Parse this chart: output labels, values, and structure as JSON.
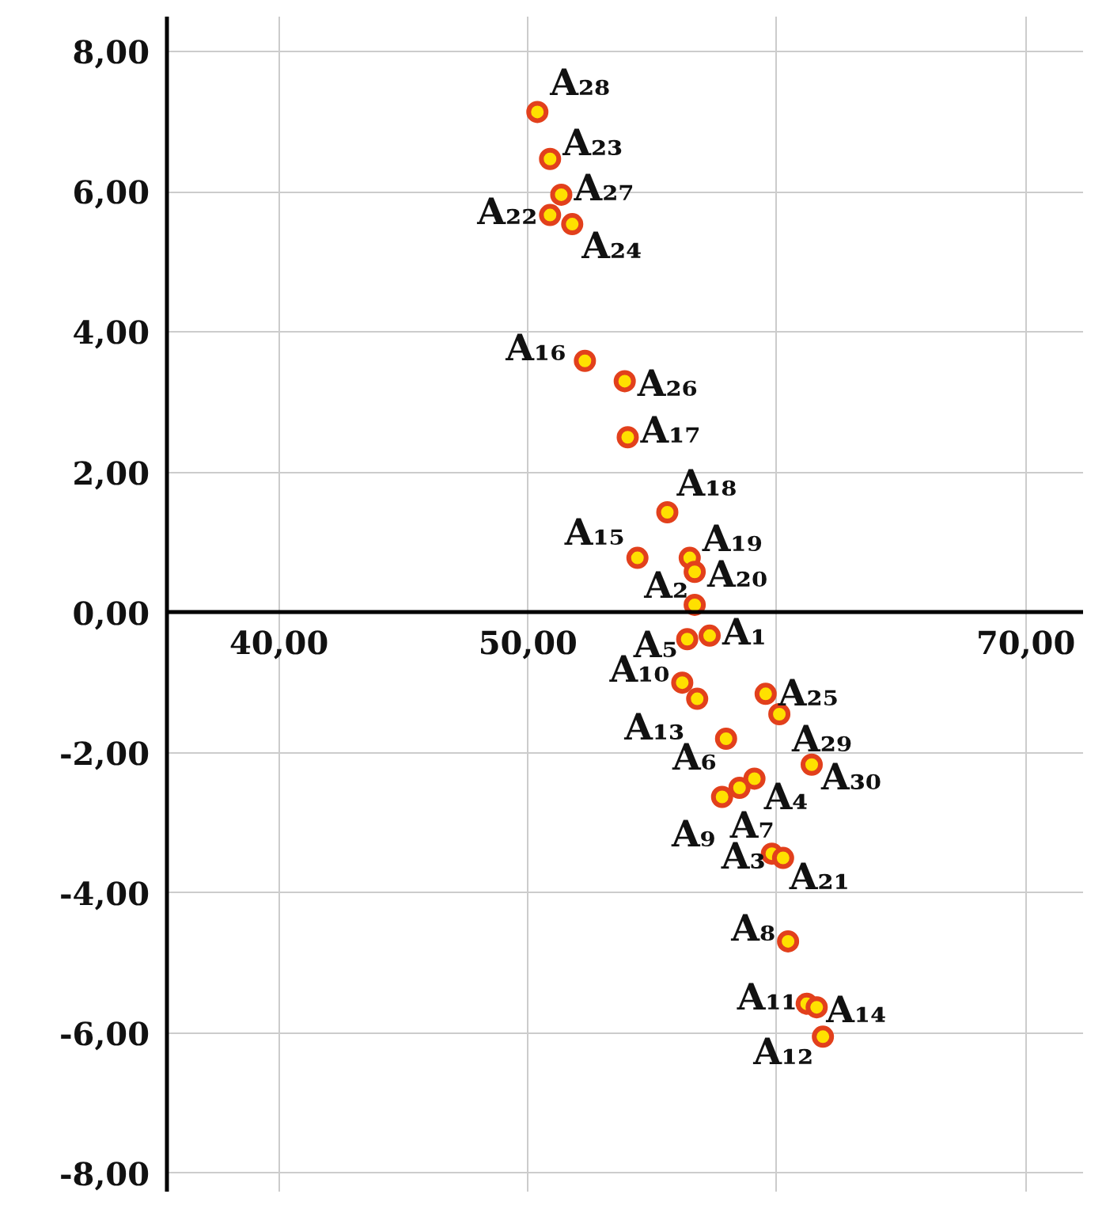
{
  "chart_data": {
    "type": "scatter",
    "x": [
      57.3,
      56.7,
      59.8,
      59.1,
      56.4,
      57.96,
      58.5,
      60.45,
      57.8,
      56.2,
      61.2,
      61.85,
      56.8,
      61.6,
      54.4,
      52.29,
      54.01,
      55.6,
      56.5,
      56.7,
      60.25,
      50.89,
      50.89,
      51.78,
      59.55,
      53.89,
      51.34,
      50.38,
      60.1,
      61.4
    ],
    "series": [
      {
        "color": "#e2401c",
        "values": [
          -0.33,
          0.11,
          -3.44,
          -2.37,
          -0.38,
          -1.8,
          -2.5,
          -4.69,
          -2.63,
          -1.0,
          -5.58,
          -6.05,
          -1.23,
          -5.63,
          0.78,
          3.59,
          2.5,
          1.43,
          0.78,
          0.58,
          -3.5,
          5.67,
          6.47,
          5.54,
          -1.16,
          3.3,
          5.96,
          7.14,
          -1.45,
          -2.17
        ]
      }
    ],
    "annotations": [
      {
        "text": "A₁",
        "x": 57.3,
        "y": -0.33
      },
      {
        "text": "A₂",
        "x": 56.7,
        "y": 0.11
      },
      {
        "text": "A₃",
        "x": 59.8,
        "y": -3.44
      },
      {
        "text": "A₄",
        "x": 59.1,
        "y": -2.37
      },
      {
        "text": "A₅",
        "x": 56.4,
        "y": -0.38
      },
      {
        "text": "A₆",
        "x": 57.96,
        "y": -1.8
      },
      {
        "text": "A₇",
        "x": 58.5,
        "y": -2.5
      },
      {
        "text": "A₈",
        "x": 60.45,
        "y": -4.69
      },
      {
        "text": "A₉",
        "x": 57.8,
        "y": -2.63
      },
      {
        "text": "A₁₀",
        "x": 56.2,
        "y": -1.0
      },
      {
        "text": "A₁₁",
        "x": 61.2,
        "y": -5.58
      },
      {
        "text": "A₁₂",
        "x": 61.85,
        "y": -6.05
      },
      {
        "text": "A₁₃",
        "x": 56.8,
        "y": -1.23
      },
      {
        "text": "A₁₄",
        "x": 61.6,
        "y": -5.63
      },
      {
        "text": "A₁₅",
        "x": 54.4,
        "y": 0.78
      },
      {
        "text": "A₁₆",
        "x": 52.29,
        "y": 3.59
      },
      {
        "text": "A₁₇",
        "x": 54.01,
        "y": 2.5
      },
      {
        "text": "A₁₈",
        "x": 55.6,
        "y": 1.43
      },
      {
        "text": "A₁₉",
        "x": 56.5,
        "y": 0.78
      },
      {
        "text": "A₂₀",
        "x": 56.7,
        "y": 0.58
      },
      {
        "text": "A₂₁",
        "x": 60.25,
        "y": -3.5
      },
      {
        "text": "A₂₂",
        "x": 50.89,
        "y": 5.67
      },
      {
        "text": "A₂₃",
        "x": 50.89,
        "y": 6.47
      },
      {
        "text": "A₂₄",
        "x": 51.78,
        "y": 5.54
      },
      {
        "text": "A₂₅",
        "x": 59.55,
        "y": -1.16
      },
      {
        "text": "A₂₆",
        "x": 53.89,
        "y": 3.3
      },
      {
        "text": "A₂₇",
        "x": 51.34,
        "y": 5.96
      },
      {
        "text": "A₂₈",
        "x": 50.38,
        "y": 7.14
      },
      {
        "text": "A₂₉",
        "x": 60.1,
        "y": -1.45
      },
      {
        "text": "A₃₀",
        "x": 61.4,
        "y": -2.17
      }
    ],
    "xlim": [
      35.5,
      72.3
    ],
    "ylim": [
      -8.26,
      8.5
    ],
    "xticks": [
      {
        "value": 40,
        "label": "40,00"
      },
      {
        "value": 50,
        "label": "50,00"
      },
      {
        "value": 60,
        "label": null
      },
      {
        "value": 70,
        "label": "70,00"
      }
    ],
    "yticks": [
      {
        "value": -8,
        "label": "-8,00"
      },
      {
        "value": -6,
        "label": "-6,00"
      },
      {
        "value": -4,
        "label": "-4,00"
      },
      {
        "value": -2,
        "label": "-2,00"
      },
      {
        "value": 0,
        "label": "0,00"
      },
      {
        "value": 2,
        "label": "2,00"
      },
      {
        "value": 4,
        "label": "4,00"
      },
      {
        "value": 6,
        "label": "6,00"
      },
      {
        "value": 8,
        "label": "8,00"
      }
    ],
    "grid": true,
    "marker": "circle"
  }
}
